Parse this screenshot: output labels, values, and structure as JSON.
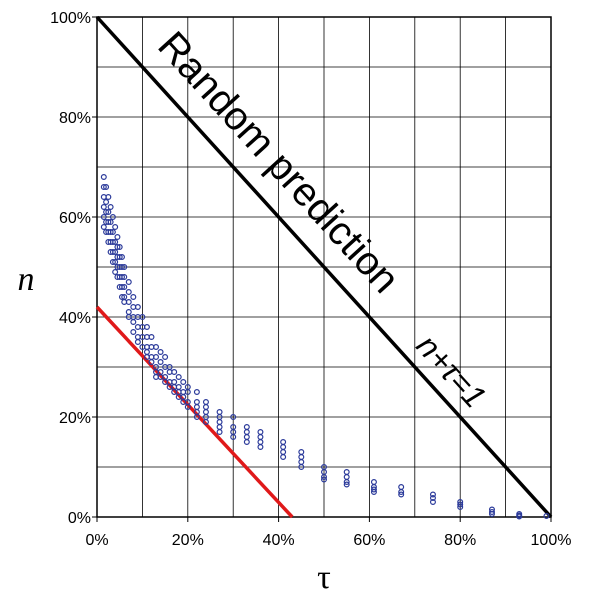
{
  "chart_data": {
    "type": "scatter",
    "xlabel": "τ",
    "ylabel": "n",
    "xlim": [
      0,
      100
    ],
    "ylim": [
      0,
      100
    ],
    "x_ticks": [
      "0%",
      "20%",
      "40%",
      "60%",
      "80%",
      "100%"
    ],
    "y_ticks": [
      "0%",
      "20%",
      "40%",
      "60%",
      "80%",
      "100%"
    ],
    "grid": true,
    "annotations": {
      "main": "Random prediction",
      "formula": "n+τ=1"
    },
    "lines": [
      {
        "color": "#000000",
        "x": [
          0,
          100
        ],
        "y": [
          100,
          0
        ]
      },
      {
        "color": "#e0191a",
        "x": [
          0,
          43
        ],
        "y": [
          42,
          0
        ]
      }
    ],
    "series": [
      {
        "color": "#2b3a9a",
        "points": [
          [
            1.5,
            68
          ],
          [
            1.5,
            66
          ],
          [
            1.5,
            64
          ],
          [
            1.5,
            62
          ],
          [
            1.5,
            60
          ],
          [
            1.5,
            58
          ],
          [
            2,
            66
          ],
          [
            2,
            63
          ],
          [
            2,
            61
          ],
          [
            2,
            59
          ],
          [
            2,
            57
          ],
          [
            2.5,
            64
          ],
          [
            2.5,
            61
          ],
          [
            2.5,
            59
          ],
          [
            2.5,
            57
          ],
          [
            2.5,
            55
          ],
          [
            3,
            62
          ],
          [
            3,
            59
          ],
          [
            3,
            57
          ],
          [
            3,
            55
          ],
          [
            3,
            53
          ],
          [
            3.5,
            60
          ],
          [
            3.5,
            57
          ],
          [
            3.5,
            55
          ],
          [
            3.5,
            53
          ],
          [
            3.5,
            51
          ],
          [
            4,
            58
          ],
          [
            4,
            55
          ],
          [
            4,
            53
          ],
          [
            4,
            51
          ],
          [
            4,
            49
          ],
          [
            4.5,
            56
          ],
          [
            4.5,
            54
          ],
          [
            4.5,
            52
          ],
          [
            4.5,
            50
          ],
          [
            4.5,
            48
          ],
          [
            5,
            54
          ],
          [
            5,
            52
          ],
          [
            5,
            50
          ],
          [
            5,
            48
          ],
          [
            5,
            46
          ],
          [
            5.5,
            52
          ],
          [
            5.5,
            50
          ],
          [
            5.5,
            48
          ],
          [
            5.5,
            46
          ],
          [
            5.5,
            44
          ],
          [
            6,
            50
          ],
          [
            6,
            48
          ],
          [
            6,
            46
          ],
          [
            6,
            44
          ],
          [
            6,
            43
          ],
          [
            7,
            47
          ],
          [
            7,
            45
          ],
          [
            7,
            43
          ],
          [
            7,
            41
          ],
          [
            7,
            40
          ],
          [
            8,
            44
          ],
          [
            8,
            42
          ],
          [
            8,
            40
          ],
          [
            8,
            39
          ],
          [
            8,
            37
          ],
          [
            9,
            42
          ],
          [
            9,
            40
          ],
          [
            9,
            38
          ],
          [
            9,
            36
          ],
          [
            9,
            35
          ],
          [
            10,
            40
          ],
          [
            10,
            38
          ],
          [
            10,
            36
          ],
          [
            10,
            34
          ],
          [
            11,
            38
          ],
          [
            11,
            36
          ],
          [
            11,
            34
          ],
          [
            11,
            33
          ],
          [
            11,
            32
          ],
          [
            12,
            36
          ],
          [
            12,
            34
          ],
          [
            12,
            32
          ],
          [
            12,
            31
          ],
          [
            13,
            34
          ],
          [
            13,
            32
          ],
          [
            13,
            30
          ],
          [
            13,
            29
          ],
          [
            13,
            28
          ],
          [
            14,
            33
          ],
          [
            14,
            31
          ],
          [
            14,
            29
          ],
          [
            14,
            28
          ],
          [
            15,
            32
          ],
          [
            15,
            30
          ],
          [
            15,
            28
          ],
          [
            15,
            27
          ],
          [
            16,
            30
          ],
          [
            16,
            29
          ],
          [
            16,
            27
          ],
          [
            16,
            26
          ],
          [
            17,
            29
          ],
          [
            17,
            27
          ],
          [
            17,
            26
          ],
          [
            17,
            25
          ],
          [
            18,
            28
          ],
          [
            18,
            26
          ],
          [
            18,
            25
          ],
          [
            18,
            24
          ],
          [
            19,
            27
          ],
          [
            19,
            25
          ],
          [
            19,
            24
          ],
          [
            19,
            23
          ],
          [
            20,
            26
          ],
          [
            20,
            25
          ],
          [
            20,
            23
          ],
          [
            20,
            22
          ],
          [
            22,
            25
          ],
          [
            22,
            23
          ],
          [
            22,
            22
          ],
          [
            22,
            21
          ],
          [
            22,
            20
          ],
          [
            24,
            23
          ],
          [
            24,
            22
          ],
          [
            24,
            21
          ],
          [
            24,
            20
          ],
          [
            24,
            19
          ],
          [
            27,
            21
          ],
          [
            27,
            20
          ],
          [
            27,
            19
          ],
          [
            27,
            18
          ],
          [
            27,
            17
          ],
          [
            30,
            20
          ],
          [
            30,
            18
          ],
          [
            30,
            17
          ],
          [
            30,
            16
          ],
          [
            33,
            18
          ],
          [
            33,
            17
          ],
          [
            33,
            16
          ],
          [
            33,
            15
          ],
          [
            36,
            17
          ],
          [
            36,
            16
          ],
          [
            36,
            15
          ],
          [
            36,
            14
          ],
          [
            41,
            15
          ],
          [
            41,
            14
          ],
          [
            41,
            13
          ],
          [
            41,
            12
          ],
          [
            45,
            13
          ],
          [
            45,
            12
          ],
          [
            45,
            11
          ],
          [
            45,
            10
          ],
          [
            50,
            10
          ],
          [
            50,
            9
          ],
          [
            50,
            8
          ],
          [
            50,
            7.5
          ],
          [
            55,
            9
          ],
          [
            55,
            8
          ],
          [
            55,
            7
          ],
          [
            55,
            6.5
          ],
          [
            61,
            7
          ],
          [
            61,
            6
          ],
          [
            61,
            5.5
          ],
          [
            61,
            5
          ],
          [
            67,
            6
          ],
          [
            67,
            5
          ],
          [
            67,
            4.5
          ],
          [
            74,
            4.5
          ],
          [
            74,
            3.8
          ],
          [
            74,
            3
          ],
          [
            80,
            3
          ],
          [
            80,
            2.5
          ],
          [
            80,
            2
          ],
          [
            87,
            1.5
          ],
          [
            87,
            1
          ],
          [
            87,
            0.6
          ],
          [
            93,
            0.6
          ],
          [
            93,
            0.3
          ],
          [
            93,
            0.1
          ],
          [
            99,
            0.2
          ]
        ]
      }
    ]
  }
}
